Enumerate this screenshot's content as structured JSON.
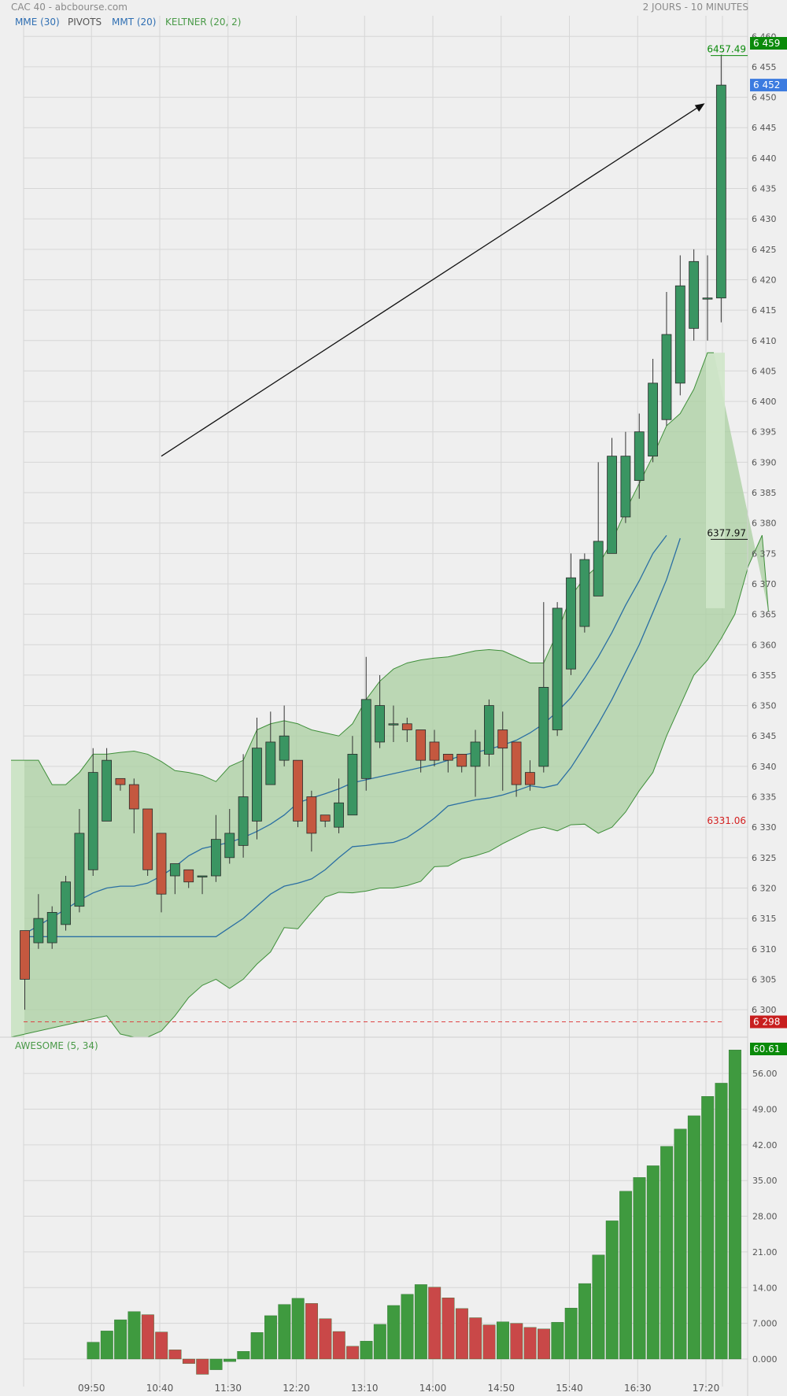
{
  "header": {
    "title": "CAC 40 - abcbourse.com",
    "period": "2 JOURS - 10 MINUTES"
  },
  "legend": {
    "mme": "MME (30)",
    "pivots": "PIVOTS",
    "mmt": "MMT (20)",
    "keltner": "KELTNER (20, 2)",
    "awesome": "AWESOME (5, 34)"
  },
  "colors": {
    "background": "#efefef",
    "grid": "#d6d6d6",
    "up": "#3a9562",
    "down": "#c4583f",
    "keltner_fill": "#a9cfa0",
    "keltner_line": "#3f8f3a",
    "ma": "#2b6fa3",
    "ao_up": "#3f9a3f",
    "ao_down": "#c94848",
    "legend_blue": "#2f6fb3",
    "legend_green": "#4a9a48",
    "label_green": "#0a8a0a",
    "label_blue": "#3b7be0",
    "label_red": "#d42020"
  },
  "labels": {
    "high_value": "6457.49",
    "mid_value": "6377.97",
    "low_value": "6331.06",
    "badge_high": "6 459",
    "badge_last": "6 452",
    "badge_low": "6 298",
    "badge_ao": "60.61"
  },
  "chart_data": [
    {
      "type": "candlestick",
      "title": "CAC 40",
      "ylim": [
        6296,
        6462
      ],
      "y_ticks": [
        6300,
        6305,
        6310,
        6315,
        6320,
        6325,
        6330,
        6335,
        6340,
        6345,
        6350,
        6355,
        6360,
        6365,
        6370,
        6375,
        6380,
        6385,
        6390,
        6395,
        6400,
        6405,
        6410,
        6415,
        6420,
        6425,
        6430,
        6435,
        6440,
        6445,
        6450,
        6455,
        6460
      ],
      "y_tick_labels": [
        "6 300",
        "6 305",
        "6 310",
        "6 315",
        "6 320",
        "6 325",
        "6 330",
        "6 335",
        "6 340",
        "6 345",
        "6 350",
        "6 355",
        "6 360",
        "6 365",
        "6 370",
        "6 375",
        "6 380",
        "6 385",
        "6 390",
        "6 395",
        "6 400",
        "6 405",
        "6 410",
        "6 415",
        "6 420",
        "6 425",
        "6 430",
        "6 435",
        "6 440",
        "6 445",
        "6 450",
        "6 455",
        "6 460"
      ],
      "x_tick_labels": [
        "09:50",
        "10:40",
        "11:30",
        "12:20",
        "13:10",
        "14:00",
        "14:50",
        "15:40",
        "16:30",
        "17:20"
      ],
      "x_tick_index": [
        5,
        10,
        15,
        20,
        25,
        30,
        35,
        40,
        45,
        50
      ],
      "candles": [
        [
          6313,
          6305,
          6313,
          6300
        ],
        [
          6311,
          6315,
          6319,
          6310
        ],
        [
          6311,
          6316,
          6317,
          6310
        ],
        [
          6314,
          6321,
          6322,
          6313
        ],
        [
          6317,
          6329,
          6333,
          6316
        ],
        [
          6323,
          6339,
          6343,
          6322
        ],
        [
          6331,
          6341,
          6343,
          6331
        ],
        [
          6338,
          6337,
          6338,
          6336
        ],
        [
          6337,
          6333,
          6338,
          6329
        ],
        [
          6333,
          6323,
          6333,
          6322
        ],
        [
          6329,
          6319,
          6329,
          6316
        ],
        [
          6322,
          6324,
          6324,
          6319
        ],
        [
          6323,
          6321,
          6323,
          6320
        ],
        [
          6322,
          6322,
          6322,
          6319
        ],
        [
          6322,
          6328,
          6332,
          6321
        ],
        [
          6325,
          6329,
          6333,
          6324
        ],
        [
          6327,
          6335,
          6342,
          6325
        ],
        [
          6331,
          6343,
          6348,
          6328
        ],
        [
          6337,
          6344,
          6349,
          6337
        ],
        [
          6341,
          6345,
          6350,
          6340
        ],
        [
          6341,
          6331,
          6341,
          6330
        ],
        [
          6335,
          6329,
          6336,
          6326
        ],
        [
          6332,
          6331,
          6332,
          6330
        ],
        [
          6330,
          6334,
          6338,
          6329
        ],
        [
          6332,
          6342,
          6345,
          6332
        ],
        [
          6338,
          6351,
          6358,
          6336
        ],
        [
          6344,
          6350,
          6355,
          6343
        ],
        [
          6347,
          6347,
          6350,
          6344
        ],
        [
          6347,
          6346,
          6348,
          6344
        ],
        [
          6346,
          6341,
          6346,
          6339
        ],
        [
          6344,
          6341,
          6346,
          6340
        ],
        [
          6342,
          6341,
          6342,
          6339
        ],
        [
          6342,
          6340,
          6342,
          6339
        ],
        [
          6340,
          6344,
          6346,
          6335
        ],
        [
          6342,
          6350,
          6351,
          6340
        ],
        [
          6346,
          6343,
          6349,
          6336
        ],
        [
          6344,
          6337,
          6344,
          6335
        ],
        [
          6339,
          6337,
          6341,
          6336
        ],
        [
          6340,
          6353,
          6367,
          6339
        ],
        [
          6346,
          6366,
          6367,
          6345
        ],
        [
          6356,
          6371,
          6375,
          6355
        ],
        [
          6363,
          6374,
          6375,
          6362
        ],
        [
          6368,
          6377,
          6390,
          6368
        ],
        [
          6375,
          6391,
          6394,
          6375
        ],
        [
          6381,
          6391,
          6395,
          6380
        ],
        [
          6387,
          6395,
          6398,
          6384
        ],
        [
          6391,
          6403,
          6407,
          6390
        ],
        [
          6397,
          6411,
          6418,
          6396
        ],
        [
          6403,
          6419,
          6424,
          6401
        ],
        [
          6412,
          6423,
          6425,
          6410
        ],
        [
          6417,
          6417,
          6424,
          6410
        ],
        [
          6417,
          6452,
          6457,
          6413
        ]
      ],
      "mme_30": [
        6312.5,
        6313.8,
        6315.2,
        6316.5,
        6318,
        6319.2,
        6320,
        6320.3,
        6320.3,
        6320.8,
        6322,
        6323.5,
        6325.3,
        6326.5,
        6327,
        6327.5,
        6328.3,
        6329.3,
        6330.5,
        6332,
        6334,
        6334.8,
        6335.5,
        6336.3,
        6337.3,
        6337.8,
        6338.3,
        6338.8,
        6339.3,
        6339.8,
        6340.3,
        6341,
        6341.8,
        6342.3,
        6342.8,
        6343.5,
        6344.3,
        6345.5,
        6347,
        6349,
        6351.3,
        6354.5,
        6358,
        6362,
        6366.5,
        6370.5,
        6375,
        6377.97
      ],
      "mme_start": 1,
      "mmt_20": [
        6312,
        6313.5,
        6315,
        6317,
        6319,
        6320.3,
        6320.8,
        6321.5,
        6323,
        6325,
        6326.8,
        6327,
        6327.3,
        6327.5,
        6328.3,
        6329.8,
        6331.5,
        6333.5,
        6334,
        6334.5,
        6334.8,
        6335.3,
        6336,
        6336.8,
        6336.5,
        6337,
        6339.8,
        6343.3,
        6347,
        6351,
        6355.5,
        6360,
        6365.3,
        6370.7,
        6377.5
      ],
      "mmt_start": 14,
      "keltner_upper": [
        6341,
        6341,
        6337,
        6337,
        6339,
        6342,
        6342,
        6342.3,
        6342.5,
        6342,
        6340.8,
        6339.3,
        6339,
        6338.5,
        6337.5,
        6340,
        6341,
        6346,
        6347,
        6347.5,
        6347,
        6346,
        6345.5,
        6345,
        6347,
        6351,
        6354,
        6356,
        6357,
        6357.5,
        6357.8,
        6358,
        6358.5,
        6359,
        6359.2,
        6359,
        6358,
        6357,
        6357,
        6362,
        6368,
        6371,
        6373,
        6377,
        6382,
        6386.5,
        6391,
        6396,
        6398,
        6402,
        6408
      ],
      "keltner_lower": [
        6299,
        6296,
        6294,
        6294.5,
        6296.5,
        6299,
        6302,
        6304,
        6305,
        6303.5,
        6305,
        6307.5,
        6309.5,
        6313.5,
        6313.3,
        6316,
        6318.5,
        6319.3,
        6319.2,
        6319.5,
        6320,
        6320,
        6320.4,
        6321.1,
        6323.5,
        6323.6,
        6324.8,
        6325.3,
        6326,
        6327.3,
        6328.4,
        6329.5,
        6330,
        6329.4,
        6330.4,
        6330.5,
        6329,
        6330,
        6332.5,
        6336,
        6339,
        6345,
        6350,
        6355,
        6357.5,
        6361,
        6365,
        6373,
        6378
      ],
      "keltner_lower_start": 6,
      "support_level": 6298,
      "arrow": {
        "from": [
          10,
          6391
        ],
        "to": [
          49.8,
          6449
        ]
      }
    },
    {
      "type": "bar",
      "title": "AWESOME (5, 34)",
      "ylim": [
        0,
        63
      ],
      "y_ticks": [
        0,
        7,
        14,
        21,
        28,
        35,
        42,
        49,
        56
      ],
      "y_tick_labels": [
        "0.000",
        "7.000",
        "14.00",
        "21.00",
        "28.00",
        "35.00",
        "42.00",
        "49.00",
        "56.00"
      ],
      "start_index": 5,
      "values": [
        3.3,
        5.5,
        7.7,
        9.3,
        8.7,
        5.3,
        1.8,
        -0.9,
        -3,
        -2.1,
        -0.5,
        1.5,
        5.2,
        8.5,
        10.7,
        11.9,
        10.9,
        7.9,
        5.4,
        2.5,
        3.5,
        6.8,
        10.5,
        12.7,
        14.6,
        14.1,
        12,
        9.9,
        8.1,
        6.7,
        7.3,
        7,
        6.2,
        5.9,
        7.2,
        10,
        14.8,
        20.4,
        27.1,
        32.9,
        35.6,
        37.9,
        41.7,
        45.1,
        47.7,
        51.5,
        54.1,
        60.61
      ],
      "colors": [
        "up",
        "up",
        "up",
        "up",
        "down",
        "down",
        "down",
        "down",
        "down",
        "up",
        "up",
        "up",
        "up",
        "up",
        "up",
        "up",
        "down",
        "down",
        "down",
        "down",
        "up",
        "up",
        "up",
        "up",
        "up",
        "down",
        "down",
        "down",
        "down",
        "down",
        "up",
        "down",
        "down",
        "down",
        "up",
        "up",
        "up",
        "up",
        "up",
        "up",
        "up",
        "up",
        "up",
        "up",
        "up",
        "up",
        "up",
        "up"
      ]
    }
  ]
}
